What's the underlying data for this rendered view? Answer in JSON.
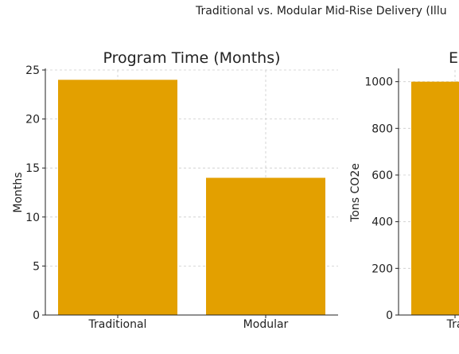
{
  "figure": {
    "suptitle": "Traditional vs. Modular Mid-Rise Delivery (Illu"
  },
  "colors": {
    "bar": "#E3A000",
    "grid": "#cccccc",
    "axis": "#222222"
  },
  "chart_data": [
    {
      "type": "bar",
      "title": "Program Time (Months)",
      "xlabel": "",
      "ylabel": "Months",
      "categories": [
        "Traditional",
        "Modular"
      ],
      "values": [
        24,
        14
      ],
      "ylim": [
        0,
        25
      ],
      "yticks": [
        0,
        5,
        10,
        15,
        20,
        25
      ],
      "grid": true,
      "legend": "none"
    },
    {
      "type": "bar",
      "title": "E",
      "xlabel": "",
      "ylabel": "Tons CO2e",
      "categories": [
        "Tra"
      ],
      "values": [
        1000
      ],
      "ylim": [
        0,
        1050
      ],
      "yticks": [
        0,
        200,
        400,
        600,
        800,
        1000
      ],
      "grid": true,
      "legend": "none"
    }
  ]
}
